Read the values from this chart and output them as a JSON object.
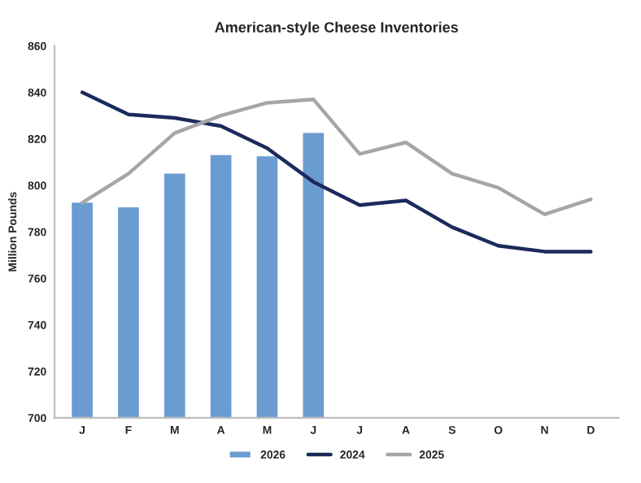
{
  "chart_data": {
    "type": "bar",
    "title": "American-style Cheese Inventories",
    "ylabel": "Million Pounds",
    "categories": [
      "J",
      "F",
      "M",
      "A",
      "M",
      "J",
      "J",
      "A",
      "S",
      "O",
      "N",
      "D"
    ],
    "series": [
      {
        "name": "2026",
        "color": "#6a9bd1",
        "values": [
          793,
          791,
          805.5,
          813.5,
          813,
          823,
          null,
          null,
          null,
          null,
          null,
          null
        ]
      },
      {
        "name": "2024",
        "type": "line",
        "color": "#1b2a5c",
        "values": [
          840,
          830.5,
          829,
          825.5,
          816,
          801.5,
          791.5,
          793.5,
          782,
          774,
          771.5,
          771.5
        ]
      },
      {
        "name": "2025",
        "type": "line",
        "color": "#a6a6a6",
        "values": [
          792.5,
          805,
          822.5,
          830,
          835.5,
          837,
          813.5,
          818.5,
          805,
          799,
          787.5,
          794
        ]
      }
    ],
    "ylim": [
      700,
      860
    ],
    "yticks": [
      700,
      720,
      740,
      760,
      780,
      800,
      820,
      840,
      860
    ],
    "grid": false,
    "legend": "bottom"
  }
}
